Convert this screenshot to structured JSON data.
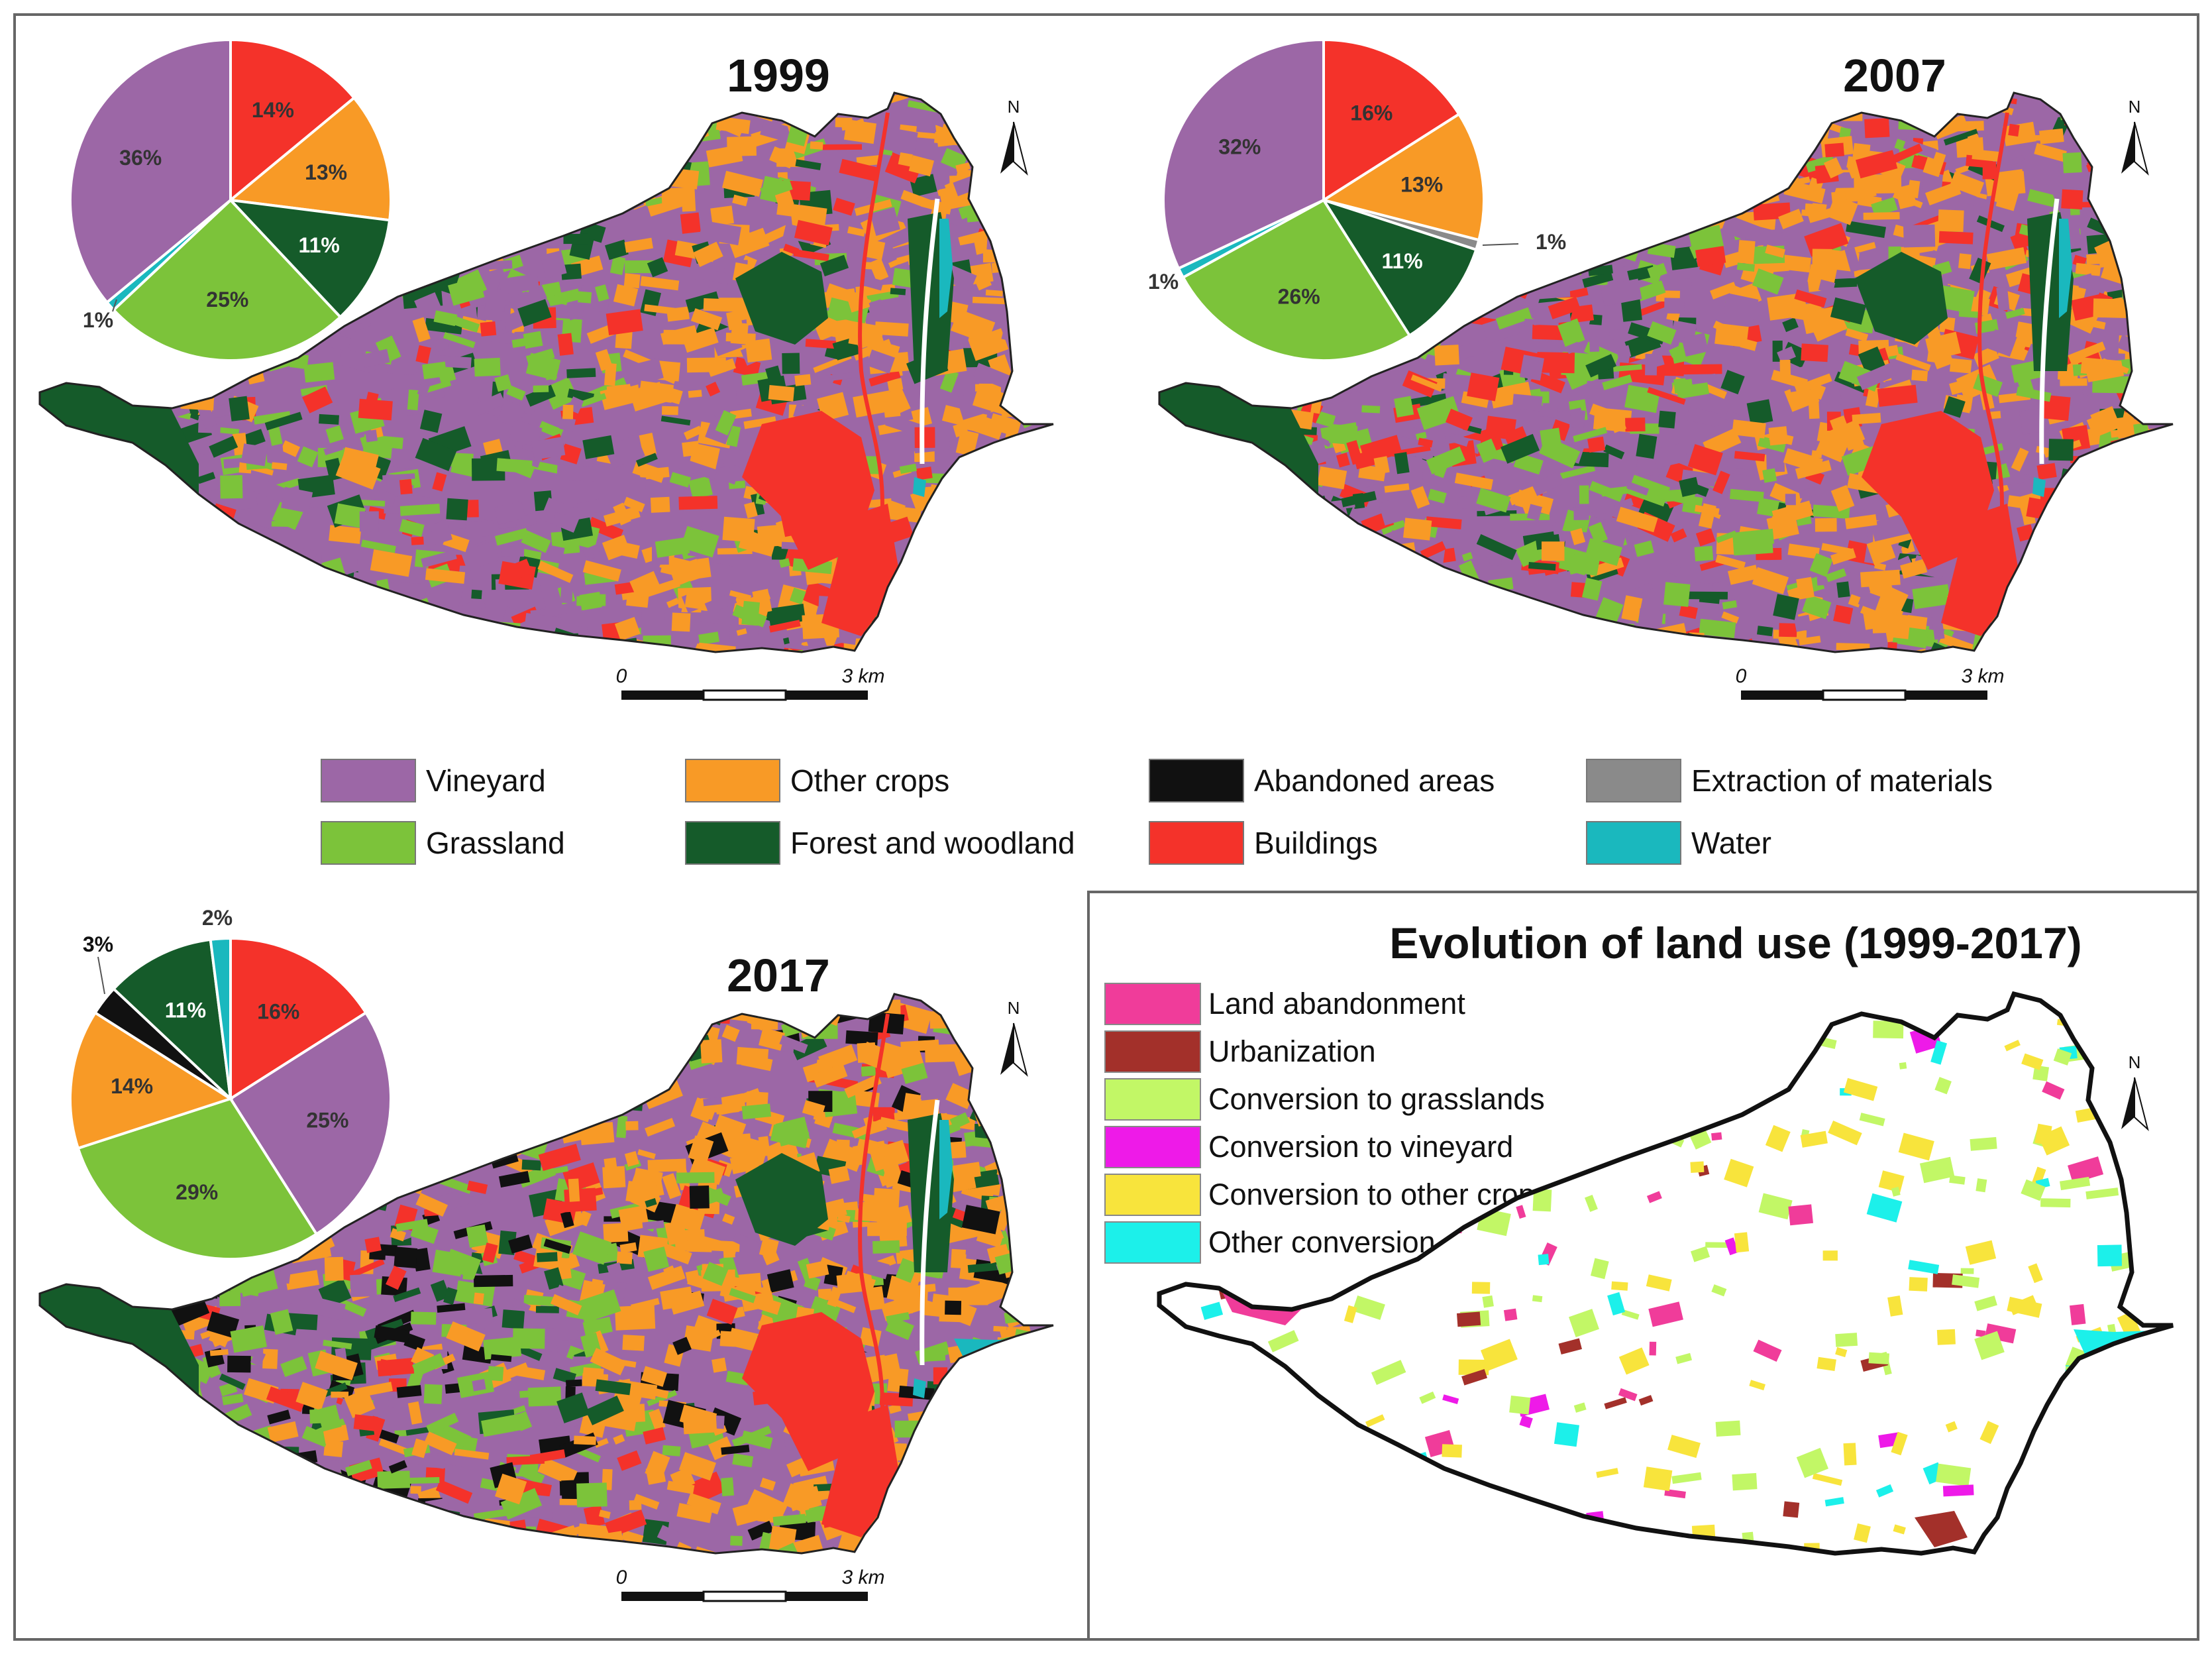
{
  "colors": {
    "vineyard": "#9c67a6",
    "grassland": "#7cc33a",
    "other_crops": "#f89a26",
    "forest": "#155b2a",
    "abandoned": "#111111",
    "buildings": "#f4322a",
    "extraction": "#8a8a8a",
    "water": "#1ab8be"
  },
  "legend": {
    "items": [
      {
        "label": "Vineyard",
        "color": "#9c67a6"
      },
      {
        "label": "Grassland",
        "color": "#7cc33a"
      },
      {
        "label": "Other crops",
        "color": "#f89a26"
      },
      {
        "label": "Forest and woodland",
        "color": "#155b2a"
      },
      {
        "label": "Abandoned areas",
        "color": "#111111"
      },
      {
        "label": "Buildings",
        "color": "#f4322a"
      },
      {
        "label": "Extraction of materials",
        "color": "#8a8a8a"
      },
      {
        "label": "Water",
        "color": "#1ab8be"
      }
    ]
  },
  "maps": [
    {
      "year": "1999",
      "pie": [
        {
          "value": 14,
          "label": "14%",
          "color": "#f4322a"
        },
        {
          "value": 13,
          "label": "13%",
          "color": "#f89a26"
        },
        {
          "value": 11,
          "label": "11%",
          "color": "#155b2a"
        },
        {
          "value": 25,
          "label": "25%",
          "color": "#7cc33a"
        },
        {
          "value": 1,
          "label": "1%",
          "color": "#1ab8be"
        },
        {
          "value": 36,
          "label": "36%",
          "color": "#9c67a6"
        }
      ]
    },
    {
      "year": "2007",
      "pie": [
        {
          "value": 16,
          "label": "16%",
          "color": "#f4322a"
        },
        {
          "value": 13,
          "label": "13%",
          "color": "#f89a26"
        },
        {
          "value": 1,
          "label": "1%",
          "color": "#8a8a8a"
        },
        {
          "value": 11,
          "label": "11%",
          "color": "#155b2a"
        },
        {
          "value": 26,
          "label": "26%",
          "color": "#7cc33a"
        },
        {
          "value": 1,
          "label": "1%",
          "color": "#1ab8be"
        },
        {
          "value": 32,
          "label": "32%",
          "color": "#9c67a6"
        }
      ]
    },
    {
      "year": "2017",
      "pie": [
        {
          "value": 16,
          "label": "16%",
          "color": "#f4322a"
        },
        {
          "value": 25,
          "label": "25%",
          "color": "#9c67a6"
        },
        {
          "value": 29,
          "label": "29%",
          "color": "#7cc33a"
        },
        {
          "value": 14,
          "label": "14%",
          "color": "#f89a26"
        },
        {
          "value": 3,
          "label": "3%",
          "color": "#111111"
        },
        {
          "value": 11,
          "label": "11%",
          "color": "#155b2a"
        },
        {
          "value": 2,
          "label": "2%",
          "color": "#1ab8be"
        }
      ]
    }
  ],
  "scalebar": {
    "start": "0",
    "end": "3 km"
  },
  "north_label": "N",
  "evolution": {
    "title": "Evolution of land use (1999-2017)",
    "items": [
      {
        "label": "Land abandonment",
        "color": "#f03c9a"
      },
      {
        "label": "Urbanization",
        "color": "#a3302a"
      },
      {
        "label": "Conversion to grasslands",
        "color": "#c2f766"
      },
      {
        "label": "Conversion to vineyard",
        "color": "#ee1ae8"
      },
      {
        "label": "Conversion to other crops",
        "color": "#f8e43c"
      },
      {
        "label": "Other conversion",
        "color": "#1cf0ea"
      }
    ]
  }
}
